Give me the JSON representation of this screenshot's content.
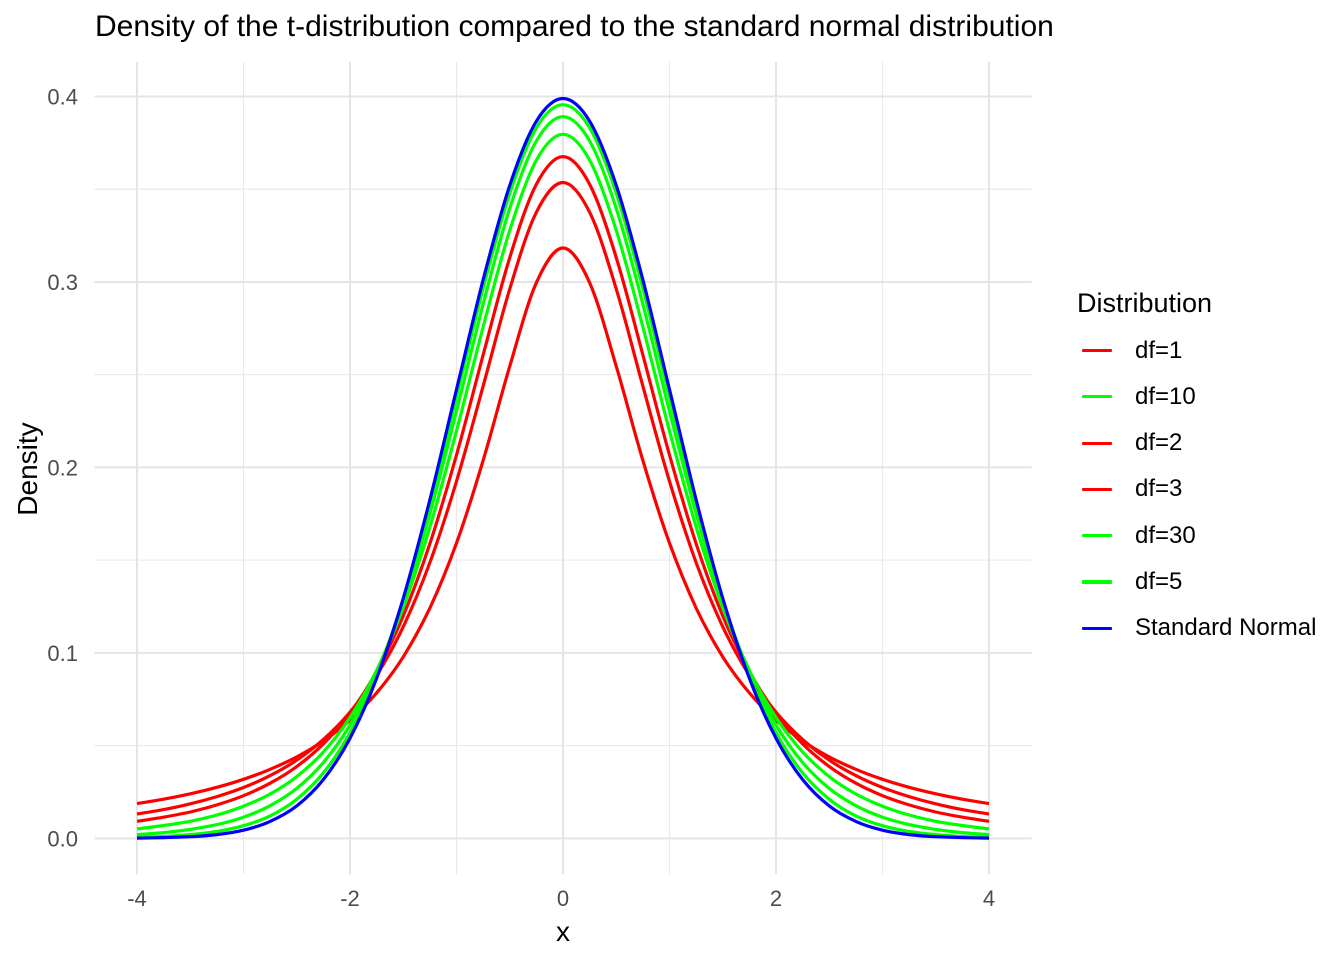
{
  "chart_data": {
    "type": "line",
    "title": "Density of the t-distribution compared to the standard normal distribution",
    "xlabel": "x",
    "ylabel": "Density",
    "legend_title": "Distribution",
    "legend_position": "right",
    "grid": true,
    "xlim": [
      -4.4,
      4.4
    ],
    "ylim": [
      -0.0194,
      0.4186
    ],
    "x_ticks": [
      -4,
      -2,
      0,
      2,
      4
    ],
    "y_ticks": [
      0,
      0.1,
      0.2,
      0.3,
      0.4
    ],
    "x_minor_ticks": [
      -3,
      -1,
      1,
      3
    ],
    "y_minor_ticks": [
      0.05,
      0.15,
      0.25,
      0.35
    ],
    "x": [
      -4,
      -3.75,
      -3.5,
      -3.25,
      -3,
      -2.75,
      -2.5,
      -2.25,
      -2,
      -1.75,
      -1.5,
      -1.25,
      -1,
      -0.75,
      -0.5,
      -0.25,
      0,
      0.25,
      0.5,
      0.75,
      1,
      1.25,
      1.5,
      1.75,
      2,
      2.25,
      2.5,
      2.75,
      3,
      3.25,
      3.5,
      3.75,
      4
    ],
    "series": [
      {
        "name": "df=1",
        "color": "#FF0000",
        "peak": 0.3183,
        "values": [
          0.0187,
          0.0211,
          0.024,
          0.0275,
          0.0318,
          0.0372,
          0.0439,
          0.0525,
          0.0637,
          0.0784,
          0.0979,
          0.1242,
          0.1592,
          0.2037,
          0.2546,
          0.2996,
          0.3183,
          0.2996,
          0.2546,
          0.2037,
          0.1592,
          0.1242,
          0.0979,
          0.0784,
          0.0637,
          0.0525,
          0.0439,
          0.0372,
          0.0318,
          0.0275,
          0.024,
          0.0211,
          0.0187
        ]
      },
      {
        "name": "df=10",
        "color": "#00FF00",
        "peak": 0.3891,
        "values": [
          0.002,
          0.0031,
          0.0048,
          0.0074,
          0.0114,
          0.0176,
          0.0269,
          0.0409,
          0.0611,
          0.0895,
          0.1274,
          0.1751,
          0.2304,
          0.288,
          0.3397,
          0.376,
          0.3891,
          0.376,
          0.3397,
          0.288,
          0.2304,
          0.1751,
          0.1274,
          0.0895,
          0.0611,
          0.0409,
          0.0269,
          0.0176,
          0.0114,
          0.0074,
          0.0048,
          0.0031,
          0.002
        ]
      },
      {
        "name": "df=2",
        "color": "#FF0000",
        "peak": 0.3536,
        "values": [
          0.0131,
          0.0155,
          0.0186,
          0.0225,
          0.0274,
          0.0338,
          0.0422,
          0.0533,
          0.068,
          0.0878,
          0.1141,
          0.1487,
          0.1925,
          0.2438,
          0.2963,
          0.3376,
          0.3536,
          0.3376,
          0.2963,
          0.2438,
          0.1925,
          0.1487,
          0.1141,
          0.0878,
          0.068,
          0.0533,
          0.0422,
          0.0338,
          0.0274,
          0.0225,
          0.0186,
          0.0155,
          0.0131
        ]
      },
      {
        "name": "df=3",
        "color": "#FF0000",
        "peak": 0.3676,
        "values": [
          0.0092,
          0.0114,
          0.0142,
          0.018,
          0.023,
          0.0297,
          0.0387,
          0.0509,
          0.0675,
          0.09,
          0.12,
          0.1589,
          0.2067,
          0.2606,
          0.3132,
          0.3527,
          0.3676,
          0.3527,
          0.3132,
          0.2606,
          0.2067,
          0.1589,
          0.12,
          0.09,
          0.0675,
          0.0509,
          0.0387,
          0.0297,
          0.023,
          0.018,
          0.0142,
          0.0114,
          0.0092
        ]
      },
      {
        "name": "df=30",
        "color": "#00FF00",
        "peak": 0.3956,
        "values": [
          0.0005,
          0.001,
          0.002,
          0.0037,
          0.0068,
          0.0121,
          0.0211,
          0.0353,
          0.0569,
          0.0877,
          0.129,
          0.1801,
          0.238,
          0.2966,
          0.3479,
          0.3831,
          0.3956,
          0.3831,
          0.3479,
          0.2966,
          0.238,
          0.1801,
          0.129,
          0.0877,
          0.0569,
          0.0353,
          0.0211,
          0.0121,
          0.0068,
          0.0037,
          0.002,
          0.001,
          0.0005
        ]
      },
      {
        "name": "df=5",
        "color": "#00FF00",
        "peak": 0.3796,
        "values": [
          0.0051,
          0.0069,
          0.0092,
          0.0126,
          0.0173,
          0.0239,
          0.0333,
          0.0466,
          0.0651,
          0.0905,
          0.1245,
          0.1679,
          0.2197,
          0.2757,
          0.3279,
          0.3657,
          0.3796,
          0.3657,
          0.3279,
          0.2757,
          0.2197,
          0.1679,
          0.1245,
          0.0905,
          0.0651,
          0.0466,
          0.0333,
          0.0239,
          0.0173,
          0.0126,
          0.0092,
          0.0069,
          0.0051
        ]
      },
      {
        "name": "Standard Normal",
        "color": "#0000FF",
        "peak": 0.3989,
        "values": [
          0.0001,
          0.0004,
          0.0009,
          0.002,
          0.0044,
          0.0091,
          0.0175,
          0.0317,
          0.054,
          0.0863,
          0.1295,
          0.1826,
          0.242,
          0.3011,
          0.3521,
          0.3867,
          0.3989,
          0.3867,
          0.3521,
          0.3011,
          0.242,
          0.1826,
          0.1295,
          0.0863,
          0.054,
          0.0317,
          0.0175,
          0.0091,
          0.0044,
          0.002,
          0.0009,
          0.0004,
          0.0001
        ]
      }
    ]
  },
  "colors": {
    "background": "#FFFFFF",
    "grid_major": "#E5E5E5",
    "grid_minor": "#E9E9E9",
    "tick_label": "#4D4D4D",
    "text": "#000000",
    "red": "#FF0000",
    "green": "#00FF00",
    "blue": "#0000FF"
  }
}
